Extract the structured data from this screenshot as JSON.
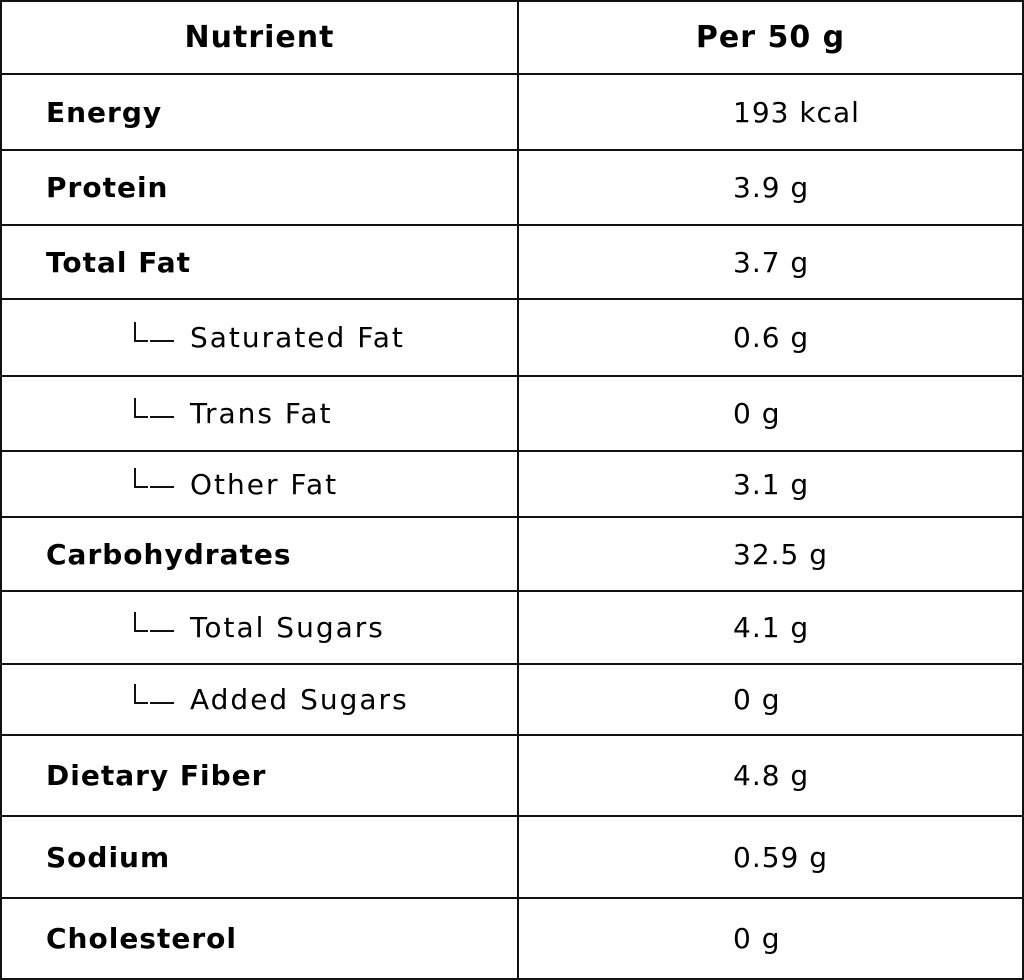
{
  "table": {
    "headers": [
      "Nutrient",
      "Per 50 g"
    ],
    "rows": [
      {
        "label": "Energy",
        "value": "193 kcal"
      },
      {
        "label": "Protein",
        "value": "3.9 g"
      },
      {
        "label": "Total Fat",
        "value": "3.7 g",
        "sub_rows": [
          {
            "label": "Saturated Fat",
            "value": "0.6 g"
          },
          {
            "label": "Trans Fat",
            "value": "0 g"
          },
          {
            "label": "Other Fat",
            "value": "3.1 g"
          }
        ]
      },
      {
        "label": "Carbohydrates",
        "value": "32.5 g",
        "sub_rows": [
          {
            "label": "Total Sugars",
            "value": "4.1 g"
          },
          {
            "label": "Added Sugars",
            "value": "0 g"
          }
        ]
      },
      {
        "label": "Dietary Fiber",
        "value": "4.8 g"
      },
      {
        "label": "Sodium",
        "value": "0.59 g"
      },
      {
        "label": "Cholesterol",
        "value": "0 g"
      }
    ]
  }
}
